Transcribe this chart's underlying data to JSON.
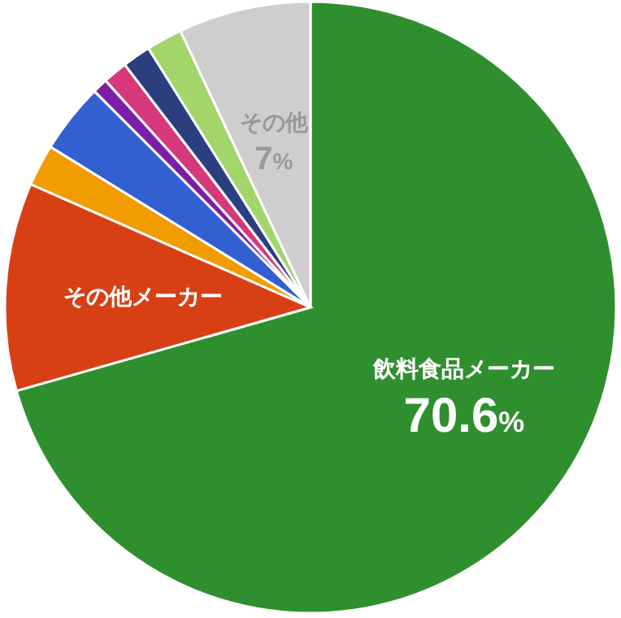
{
  "chart_data": {
    "type": "pie",
    "categories": [
      "飲料食品メーカー",
      "その他メーカー",
      null,
      null,
      null,
      null,
      null,
      null,
      "その他"
    ],
    "values": [
      70.6,
      11,
      2.2,
      3.7,
      0.8,
      1.3,
      1.5,
      1.9,
      7
    ],
    "colors": [
      "#2f8f2f",
      "#d93f14",
      "#f29c00",
      "#3360d0",
      "#7d1ea6",
      "#d6387c",
      "#2b3f80",
      "#a3d56b",
      "#cecece"
    ],
    "value_labels": [
      "70.6%",
      null,
      null,
      null,
      null,
      null,
      null,
      null,
      "7%"
    ]
  }
}
